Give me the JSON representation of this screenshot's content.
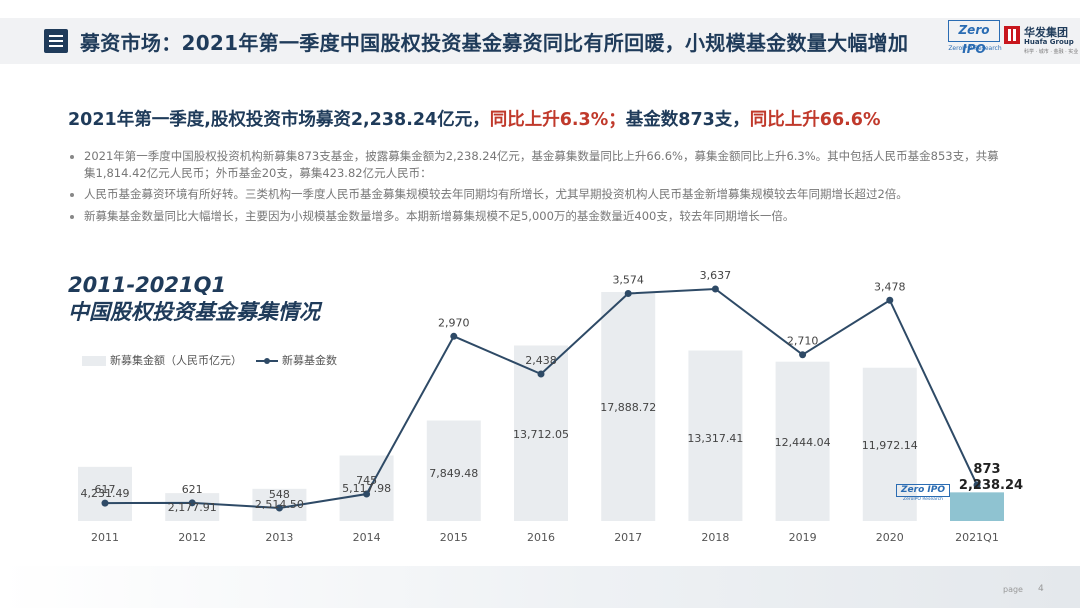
{
  "header": {
    "title": "募资市场：2021年第一季度中国股权投资基金募资同比有所回暖，小规模基金数量大幅增加",
    "logo_zero": "Zero IPO",
    "logo_zero_sub": "ZeroIPO Research",
    "logo_huafa_cn": "华发集团",
    "logo_huafa_en": "Huafa Group",
    "logo_huafa_tag": "科学 · 城市 · 金融 · 实业"
  },
  "headline": {
    "part1": "2021年第一季度,股权投资市场募资2,238.24亿元，",
    "part2": "同比上升6.3%；",
    "part3": "基金数873支，",
    "part4": "同比上升66.6%"
  },
  "bullets": [
    "2021年第一季度中国股权投资机构新募集873支基金，披露募集金额为2,238.24亿元，基金募集数量同比上升66.6%，募集金额同比上升6.3%。其中包括人民币基金853支，共募集1,814.42亿元人民币；外币基金20支，募集423.82亿元人民币：",
    "人民币基金募资环境有所好转。三类机构一季度人民币基金募集规模较去年同期均有所增长，尤其早期投资机构人民币基金新增募集规模较去年同期增长超过2倍。",
    "新募集基金数量同比大幅增长，主要因为小规模基金数量增多。本期新增募集规模不足5,000万的基金数量近400支，较去年同期增长一倍。"
  ],
  "chart_title_line1": "2011-2021Q1",
  "chart_title_line2": "中国股权投资基金募集情况",
  "legend": {
    "bar": "新募集金额（人民币亿元）",
    "line": "新募基金数"
  },
  "colors": {
    "bar": "#e9ecef",
    "bar_last": "#8fc3d1",
    "line": "#2e4a66",
    "title": "#1f3b5a",
    "highlight": "#c0392b"
  },
  "chart_data": {
    "type": "bar",
    "categories": [
      "2011",
      "2012",
      "2013",
      "2014",
      "2015",
      "2016",
      "2017",
      "2018",
      "2019",
      "2020",
      "2021Q1"
    ],
    "series": [
      {
        "name": "新募集金额（人民币亿元）",
        "type": "bar",
        "values": [
          4231.49,
          2177.91,
          2514.5,
          5117.98,
          7849.48,
          13712.05,
          17888.72,
          13317.41,
          12444.04,
          11972.14,
          2238.24
        ],
        "labels": [
          "4,231.49",
          "2,177.91",
          "2,514.50",
          "5,117.98",
          "7,849.48",
          "13,712.05",
          "17,888.72",
          "13,317.41",
          "12,444.04",
          "11,972.14",
          "2,238.24"
        ]
      },
      {
        "name": "新募基金数",
        "type": "line",
        "values": [
          617,
          621,
          548,
          745,
          2970,
          2438,
          3574,
          3637,
          2710,
          3478,
          873
        ],
        "labels": [
          "617",
          "621",
          "548",
          "745",
          "2,970",
          "2,438",
          "3,574",
          "3,637",
          "2,710",
          "3,478",
          "873"
        ]
      }
    ],
    "legend_position": "top-left",
    "grid": false
  },
  "footer": {
    "page_label": "page",
    "page_number": "4"
  }
}
